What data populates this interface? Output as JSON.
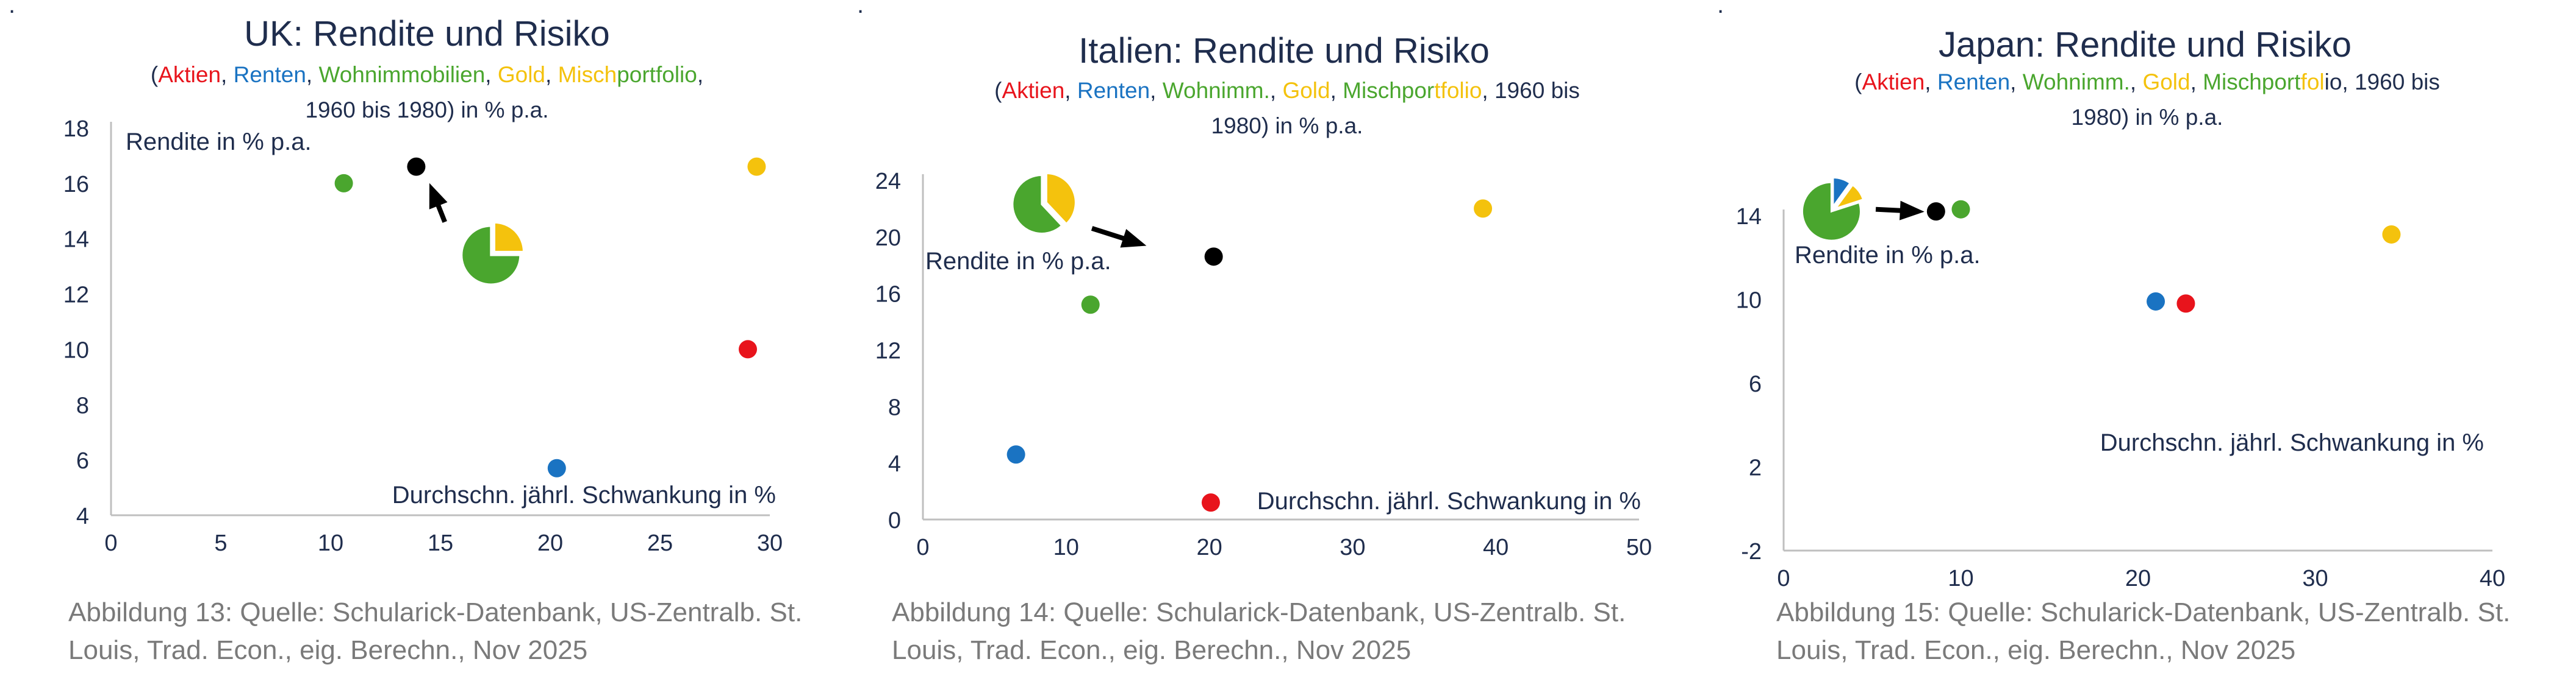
{
  "colors": {
    "aktien": "#e8141c",
    "renten": "#1a73c2",
    "wohn": "#4aa62e",
    "gold": "#f4c20d",
    "misch": "#000000",
    "text": "#1f2d4d",
    "axis": "#bfbfbf",
    "caption": "#7a7a7a"
  },
  "panels": [
    {
      "title": "UK: Rendite und  Risiko",
      "subtitle_parts": [
        "(",
        "Aktien",
        ", ",
        "Renten",
        ", ",
        "Wohnimmobilien",
        ", ",
        "Gold",
        ", ",
        "Misch",
        "portfolio",
        ","
      ],
      "subtitle_line2": "1960 bis 1980) in % p.a.",
      "caption_line1": "Abbildung 13: Quelle: Schularick-Datenbank, US-Zentralb. St.",
      "caption_line2": "Louis, Trad. Econ., eig. Berechn., Nov 2025",
      "corner_mark": "."
    },
    {
      "title": "Italien: Rendite und  Risiko",
      "subtitle_parts": [
        "(",
        "Aktien",
        ", ",
        "Renten",
        ", ",
        "Wohnimm.",
        ", ",
        "Gold",
        ", ",
        "Mischpor",
        "tfolio",
        ", 1960 bis"
      ],
      "subtitle_line2": "1980) in % p.a.",
      "caption_line1": "Abbildung 14: Quelle: Schularick-Datenbank, US-Zentralb. St.",
      "caption_line2": "Louis, Trad. Econ., eig. Berechn., Nov 2025",
      "corner_mark": "."
    },
    {
      "title": "Japan: Rendite und  Risiko",
      "subtitle_parts": [
        "(",
        "Aktien",
        ", ",
        "Renten",
        ", ",
        "Wohnimm.",
        ", ",
        "Gold",
        ", ",
        "Mischport",
        "fol",
        "io, 1960 bis"
      ],
      "subtitle_line2": "1980) in % p.a.",
      "caption_line1": "Abbildung 15: Quelle: Schularick-Datenbank, US-Zentralb. St.",
      "caption_line2": "Louis, Trad. Econ., eig. Berechn., Nov 2025",
      "corner_mark": "."
    }
  ],
  "chart_data": [
    {
      "type": "scatter",
      "title": "UK: Rendite und  Risiko",
      "ylabel": "Rendite in % p.a.",
      "xlabel": "Durchschn. jährl. Schwankung in %",
      "xlim": [
        0,
        30
      ],
      "ylim": [
        4,
        18
      ],
      "xticks": [
        0,
        5,
        10,
        15,
        20,
        25,
        30
      ],
      "yticks": [
        4,
        6,
        8,
        10,
        12,
        14,
        16,
        18
      ],
      "points": [
        {
          "asset": "wohn",
          "x": 10.6,
          "y": 16.0
        },
        {
          "asset": "misch",
          "x": 13.9,
          "y": 16.6
        },
        {
          "asset": "gold",
          "x": 29.4,
          "y": 16.6
        },
        {
          "asset": "aktien",
          "x": 29.0,
          "y": 10.0
        },
        {
          "asset": "renten",
          "x": 20.3,
          "y": 5.7
        }
      ],
      "pie": {
        "x": 17.3,
        "y": 13.4,
        "shares": {
          "wohn": 0.75,
          "gold": 0.25
        }
      },
      "arrow": {
        "from": [
          15.2,
          14.6
        ],
        "to": [
          14.6,
          15.8
        ]
      },
      "grid": false,
      "legend": "none"
    },
    {
      "type": "scatter",
      "title": "Italien: Rendite und  Risiko",
      "ylabel": "Rendite in % p.a.",
      "xlabel": "Durchschn. jährl. Schwankung in %",
      "xlim": [
        0,
        50
      ],
      "ylim": [
        0,
        24
      ],
      "xticks": [
        0,
        10,
        20,
        30,
        40,
        50
      ],
      "yticks": [
        0,
        4,
        8,
        12,
        16,
        20,
        24
      ],
      "points": [
        {
          "asset": "wohn",
          "x": 11.7,
          "y": 15.2
        },
        {
          "asset": "misch",
          "x": 20.3,
          "y": 18.6
        },
        {
          "asset": "gold",
          "x": 39.1,
          "y": 22.0
        },
        {
          "asset": "renten",
          "x": 6.5,
          "y": 4.6
        },
        {
          "asset": "aktien",
          "x": 20.1,
          "y": 1.2
        }
      ],
      "pie": {
        "x": 8.3,
        "y": 22.3,
        "shares": {
          "wohn": 0.62,
          "gold": 0.38
        }
      },
      "arrow": {
        "from": [
          11.8,
          20.6
        ],
        "to": [
          15.2,
          19.5
        ]
      },
      "grid": false,
      "legend": "none"
    },
    {
      "type": "scatter",
      "title": "Japan: Rendite und  Risiko",
      "ylabel": "Rendite in % p.a.",
      "xlabel": "Durchschn. jährl. Schwankung in %",
      "xlim": [
        0,
        40
      ],
      "ylim": [
        -2,
        14
      ],
      "xticks": [
        0,
        10,
        20,
        30,
        40
      ],
      "yticks": [
        -2,
        2,
        6,
        10,
        14
      ],
      "points": [
        {
          "asset": "misch",
          "x": 8.6,
          "y": 14.2
        },
        {
          "asset": "wohn",
          "x": 10.0,
          "y": 14.3
        },
        {
          "asset": "gold",
          "x": 34.3,
          "y": 13.1
        },
        {
          "asset": "renten",
          "x": 21.0,
          "y": 9.9
        },
        {
          "asset": "aktien",
          "x": 22.7,
          "y": 9.8
        }
      ],
      "pie": {
        "x": 2.7,
        "y": 14.2,
        "shares": {
          "wohn": 0.8,
          "renten": 0.1,
          "gold": 0.1
        }
      },
      "arrow": {
        "from": [
          5.2,
          14.3
        ],
        "to": [
          7.6,
          14.2
        ]
      },
      "grid": false,
      "legend": "none"
    }
  ]
}
